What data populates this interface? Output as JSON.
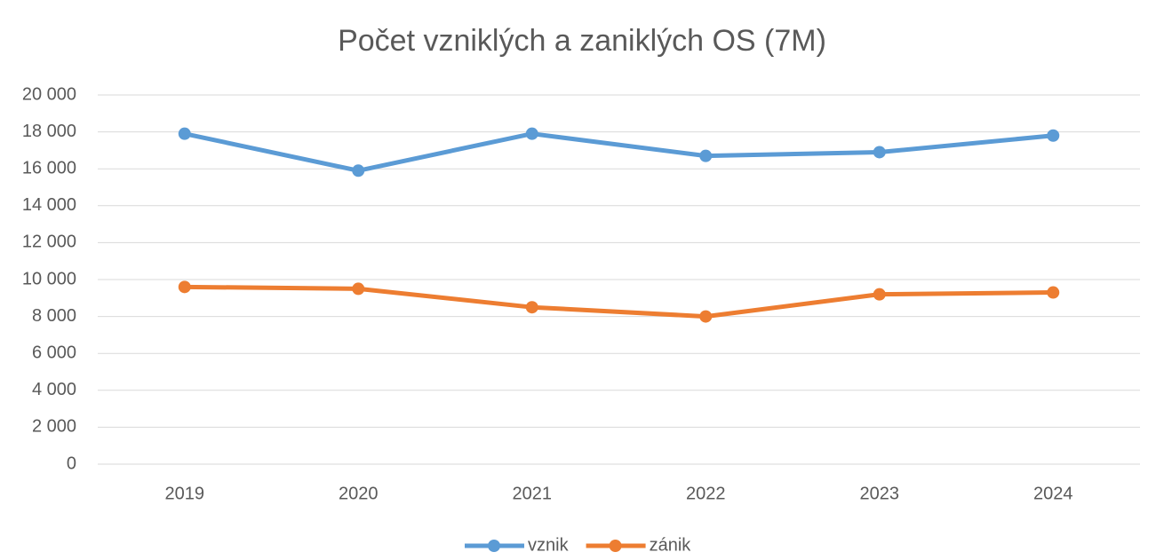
{
  "chart_data": {
    "type": "line",
    "title": "Počet vzniklých a zaniklých OS (7M)",
    "categories": [
      "2019",
      "2020",
      "2021",
      "2022",
      "2023",
      "2024"
    ],
    "series": [
      {
        "name": "vznik",
        "color": "#5b9bd5",
        "values": [
          17900,
          15900,
          17900,
          16700,
          16900,
          17800
        ]
      },
      {
        "name": "zánik",
        "color": "#ed7d31",
        "values": [
          9600,
          9500,
          8500,
          8000,
          9200,
          9300
        ]
      }
    ],
    "ylim": [
      0,
      20000
    ],
    "yticks": [
      0,
      {
        "value": 2000,
        "label": "2 000"
      },
      {
        "value": 4000,
        "label": "4 000"
      },
      {
        "value": 6000,
        "label": "6 000"
      },
      {
        "value": 8000,
        "label": "8 000"
      },
      {
        "value": 10000,
        "label": "10 000"
      },
      {
        "value": 12000,
        "label": "12 000"
      },
      {
        "value": 14000,
        "label": "14 000"
      },
      {
        "value": 16000,
        "label": "16 000"
      },
      {
        "value": 18000,
        "label": "18 000"
      },
      {
        "value": 20000,
        "label": "20 000"
      }
    ],
    "grid": true,
    "legend": "bottom"
  }
}
